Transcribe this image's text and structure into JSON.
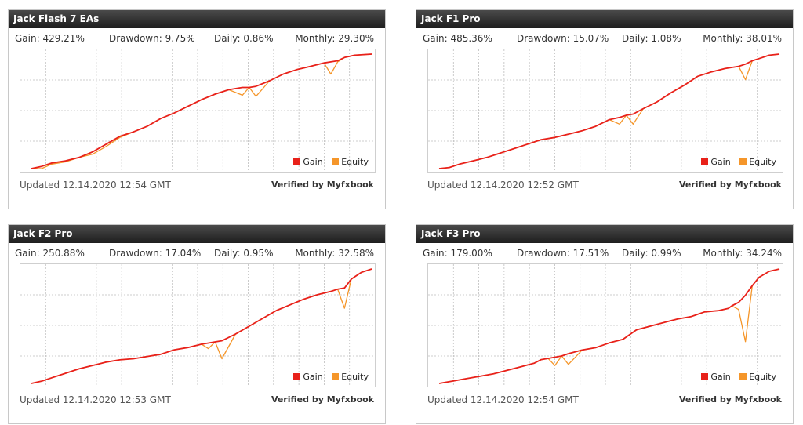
{
  "colors": {
    "gain": "#e8211a",
    "equity": "#f5962a",
    "grid": "#bdbdbd"
  },
  "widgets": [
    {
      "title": "Jack Flash 7 EAs",
      "stats": {
        "gain": "Gain: 429.21%",
        "drawdown": "Drawdown: 9.75%",
        "daily": "Daily: 0.86%",
        "monthly": "Monthly: 29.30%"
      },
      "legend": {
        "gain": "Gain",
        "equity": "Equity"
      },
      "updated": "Updated 12.14.2020 12:54 GMT",
      "verified": "Verified by Myfxbook"
    },
    {
      "title": "Jack F1 Pro",
      "stats": {
        "gain": "Gain: 485.36%",
        "drawdown": "Drawdown: 15.07%",
        "daily": "Daily: 1.08%",
        "monthly": "Monthly: 38.01%"
      },
      "legend": {
        "gain": "Gain",
        "equity": "Equity"
      },
      "updated": "Updated 12.14.2020 12:52 GMT",
      "verified": "Verified by Myfxbook"
    },
    {
      "title": "Jack F2 Pro",
      "stats": {
        "gain": "Gain: 250.88%",
        "drawdown": "Drawdown: 17.04%",
        "daily": "Daily: 0.95%",
        "monthly": "Monthly: 32.58%"
      },
      "legend": {
        "gain": "Gain",
        "equity": "Equity"
      },
      "updated": "Updated 12.14.2020 12:53 GMT",
      "verified": "Verified by Myfxbook"
    },
    {
      "title": "Jack F3 Pro",
      "stats": {
        "gain": "Gain: 179.00%",
        "drawdown": "Drawdown: 17.51%",
        "daily": "Daily: 0.99%",
        "monthly": "Monthly: 34.24%"
      },
      "legend": {
        "gain": "Gain",
        "equity": "Equity"
      },
      "updated": "Updated 12.14.2020 12:54 GMT",
      "verified": "Verified by Myfxbook"
    }
  ],
  "chart_data": [
    {
      "type": "line",
      "grid": true,
      "legend_placement": "bottom-right",
      "x": [
        0,
        0.03,
        0.06,
        0.1,
        0.14,
        0.18,
        0.22,
        0.26,
        0.3,
        0.34,
        0.38,
        0.42,
        0.46,
        0.5,
        0.54,
        0.58,
        0.62,
        0.64,
        0.66,
        0.7,
        0.74,
        0.78,
        0.82,
        0.86,
        0.88,
        0.9,
        0.92,
        0.95,
        1.0
      ],
      "series": [
        {
          "name": "Gain",
          "values": [
            0,
            2,
            5,
            7,
            10,
            15,
            22,
            29,
            33,
            38,
            45,
            50,
            56,
            62,
            67,
            71,
            73,
            73,
            74,
            79,
            85,
            89,
            92,
            95,
            96,
            97,
            100,
            102,
            103
          ]
        },
        {
          "name": "Equity",
          "values": [
            0,
            0,
            4,
            6,
            10,
            13,
            20,
            28,
            33,
            38,
            45,
            50,
            56,
            62,
            67,
            71,
            66,
            73,
            65,
            79,
            85,
            89,
            92,
            95,
            85,
            96,
            100,
            102,
            103
          ]
        }
      ]
    },
    {
      "type": "line",
      "grid": true,
      "legend_placement": "bottom-right",
      "x": [
        0,
        0.03,
        0.06,
        0.1,
        0.14,
        0.18,
        0.22,
        0.26,
        0.3,
        0.34,
        0.38,
        0.42,
        0.46,
        0.5,
        0.53,
        0.55,
        0.57,
        0.6,
        0.64,
        0.68,
        0.72,
        0.76,
        0.8,
        0.84,
        0.88,
        0.9,
        0.92,
        0.94,
        0.97,
        1.0
      ],
      "series": [
        {
          "name": "Gain",
          "values": [
            0,
            1,
            4,
            7,
            10,
            14,
            18,
            22,
            26,
            28,
            31,
            34,
            38,
            44,
            46,
            48,
            49,
            54,
            60,
            68,
            75,
            83,
            87,
            90,
            92,
            94,
            97,
            99,
            102,
            103
          ]
        },
        {
          "name": "Equity",
          "values": [
            0,
            1,
            4,
            7,
            10,
            14,
            18,
            22,
            26,
            28,
            31,
            34,
            38,
            44,
            40,
            48,
            40,
            54,
            60,
            68,
            75,
            83,
            87,
            90,
            92,
            80,
            97,
            99,
            102,
            103
          ]
        }
      ]
    },
    {
      "type": "line",
      "grid": true,
      "legend_placement": "bottom-right",
      "x": [
        0,
        0.03,
        0.06,
        0.1,
        0.14,
        0.18,
        0.22,
        0.26,
        0.3,
        0.34,
        0.38,
        0.42,
        0.46,
        0.5,
        0.52,
        0.54,
        0.56,
        0.6,
        0.64,
        0.68,
        0.72,
        0.76,
        0.8,
        0.84,
        0.88,
        0.9,
        0.92,
        0.94,
        0.97,
        1.0
      ],
      "series": [
        {
          "name": "Gain",
          "values": [
            0,
            2,
            5,
            9,
            13,
            16,
            19,
            21,
            22,
            24,
            26,
            30,
            32,
            35,
            36,
            37,
            38,
            44,
            51,
            58,
            65,
            70,
            75,
            79,
            82,
            84,
            85,
            93,
            99,
            102
          ]
        },
        {
          "name": "Equity",
          "values": [
            0,
            2,
            5,
            9,
            13,
            16,
            19,
            21,
            22,
            24,
            26,
            30,
            32,
            35,
            31,
            37,
            22,
            44,
            51,
            58,
            65,
            70,
            75,
            79,
            82,
            84,
            67,
            93,
            99,
            102
          ]
        }
      ]
    },
    {
      "type": "line",
      "grid": true,
      "legend_placement": "bottom-right",
      "x": [
        0,
        0.04,
        0.08,
        0.12,
        0.16,
        0.2,
        0.24,
        0.28,
        0.3,
        0.32,
        0.34,
        0.36,
        0.38,
        0.42,
        0.46,
        0.5,
        0.54,
        0.58,
        0.62,
        0.66,
        0.7,
        0.74,
        0.78,
        0.82,
        0.85,
        0.86,
        0.88,
        0.9,
        0.92,
        0.94,
        0.97,
        1.0
      ],
      "series": [
        {
          "name": "Gain",
          "values": [
            0,
            2,
            4,
            6,
            8,
            11,
            14,
            17,
            20,
            21,
            22,
            23,
            25,
            28,
            30,
            34,
            37,
            45,
            48,
            51,
            54,
            56,
            60,
            61,
            63,
            65,
            68,
            74,
            82,
            89,
            94,
            96
          ]
        },
        {
          "name": "Equity",
          "values": [
            0,
            2,
            4,
            6,
            8,
            11,
            14,
            17,
            20,
            21,
            15,
            23,
            16,
            28,
            30,
            34,
            37,
            45,
            48,
            51,
            54,
            56,
            60,
            61,
            63,
            65,
            62,
            35,
            82,
            89,
            94,
            96
          ]
        }
      ]
    }
  ]
}
